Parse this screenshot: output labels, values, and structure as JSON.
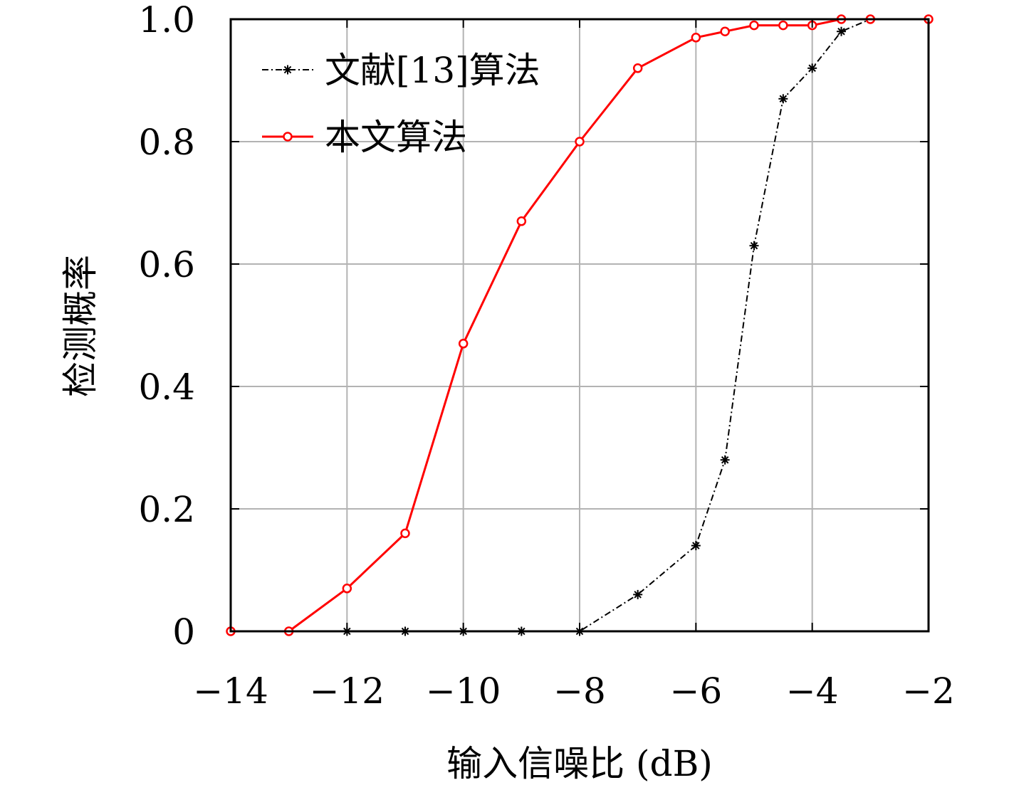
{
  "chart_data": {
    "type": "line",
    "xlabel": "输入信噪比 (dB)",
    "ylabel": "检测概率",
    "xlim": [
      -14,
      -2
    ],
    "ylim": [
      0,
      1
    ],
    "x_ticks": [
      "−14",
      "−12",
      "−10",
      "−8",
      "−6",
      "−4",
      "−2"
    ],
    "y_ticks": [
      "0",
      "0.2",
      "0.4",
      "0.6",
      "0.8",
      "1.0"
    ],
    "grid": true,
    "legend_position": "top-left",
    "series": [
      {
        "name": "文献[13]算法",
        "color": "#000000",
        "line_style": "dashed",
        "marker": "asterisk",
        "x": [
          -14,
          -13,
          -12,
          -11,
          -10,
          -9,
          -8,
          -7,
          -6,
          -5.5,
          -5,
          -4.5,
          -4,
          -3.5,
          -3,
          -2
        ],
        "y": [
          0,
          0,
          0,
          0,
          0,
          0,
          0,
          0.06,
          0.14,
          0.28,
          0.63,
          0.87,
          0.92,
          0.98,
          1.0,
          1.0
        ]
      },
      {
        "name": "本文算法",
        "color": "#ff0000",
        "line_style": "solid",
        "marker": "circle",
        "x": [
          -14,
          -13,
          -12,
          -11,
          -10,
          -9,
          -8,
          -7,
          -6,
          -5.5,
          -5,
          -4.5,
          -4,
          -3.5,
          -3,
          -2
        ],
        "y": [
          0,
          0,
          0.07,
          0.16,
          0.47,
          0.67,
          0.8,
          0.92,
          0.97,
          0.98,
          0.99,
          0.99,
          0.99,
          1.0,
          1.0,
          1.0
        ]
      }
    ]
  }
}
